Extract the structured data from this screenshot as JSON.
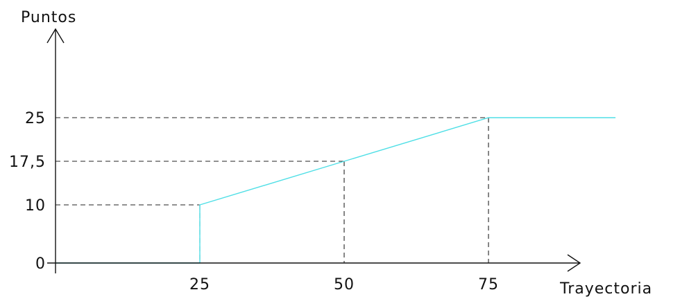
{
  "chart_data": {
    "type": "line",
    "xlabel": "Trayectoria",
    "ylabel": "Puntos",
    "xlim": [
      0,
      100
    ],
    "ylim": [
      0,
      25
    ],
    "xticks": [
      {
        "value": 25,
        "label": "25"
      },
      {
        "value": 50,
        "label": "50"
      },
      {
        "value": 75,
        "label": "75"
      }
    ],
    "yticks": [
      {
        "value": 0,
        "label": "0"
      },
      {
        "value": 10,
        "label": "10"
      },
      {
        "value": 17.5,
        "label": "17,5"
      },
      {
        "value": 25,
        "label": "25"
      }
    ],
    "reference_lines": [
      {
        "x": 25,
        "y": 10
      },
      {
        "x": 50,
        "y": 17.5
      },
      {
        "x": 75,
        "y": 25
      }
    ],
    "series": [
      {
        "color": "#4fdfe6",
        "x": [
          0,
          25,
          25,
          50,
          75,
          97
        ],
        "y": [
          0,
          0,
          10,
          17.5,
          25,
          25
        ]
      }
    ],
    "grid": false,
    "legend": "none"
  }
}
